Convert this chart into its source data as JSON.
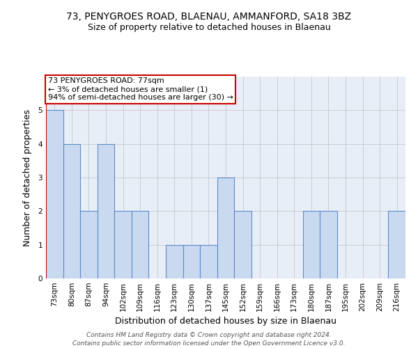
{
  "title1": "73, PENYGROES ROAD, BLAENAU, AMMANFORD, SA18 3BZ",
  "title2": "Size of property relative to detached houses in Blaenau",
  "xlabel": "Distribution of detached houses by size in Blaenau",
  "ylabel": "Number of detached properties",
  "bins": [
    "73sqm",
    "80sqm",
    "87sqm",
    "94sqm",
    "102sqm",
    "109sqm",
    "116sqm",
    "123sqm",
    "130sqm",
    "137sqm",
    "145sqm",
    "152sqm",
    "159sqm",
    "166sqm",
    "173sqm",
    "180sqm",
    "187sqm",
    "195sqm",
    "202sqm",
    "209sqm",
    "216sqm"
  ],
  "values": [
    5,
    4,
    2,
    4,
    2,
    2,
    0,
    1,
    1,
    1,
    3,
    2,
    0,
    0,
    0,
    2,
    2,
    0,
    0,
    0,
    2
  ],
  "bar_color": "#c9d9f0",
  "bar_edge_color": "#5b8cc8",
  "subject_line_color": "#cc0000",
  "annotation_text": "73 PENYGROES ROAD: 77sqm\n← 3% of detached houses are smaller (1)\n94% of semi-detached houses are larger (30) →",
  "annotation_box_color": "#ffffff",
  "annotation_box_edge_color": "#cc0000",
  "ylim": [
    0,
    6
  ],
  "yticks": [
    0,
    1,
    2,
    3,
    4,
    5,
    6
  ],
  "footer_text": "Contains HM Land Registry data © Crown copyright and database right 2024.\nContains public sector information licensed under the Open Government Licence v3.0.",
  "title1_fontsize": 10,
  "title2_fontsize": 9,
  "xlabel_fontsize": 9,
  "ylabel_fontsize": 9,
  "tick_fontsize": 7.5,
  "annotation_fontsize": 8,
  "footer_fontsize": 6.5,
  "grid_color": "#cccccc",
  "background_color": "#e8eef8"
}
